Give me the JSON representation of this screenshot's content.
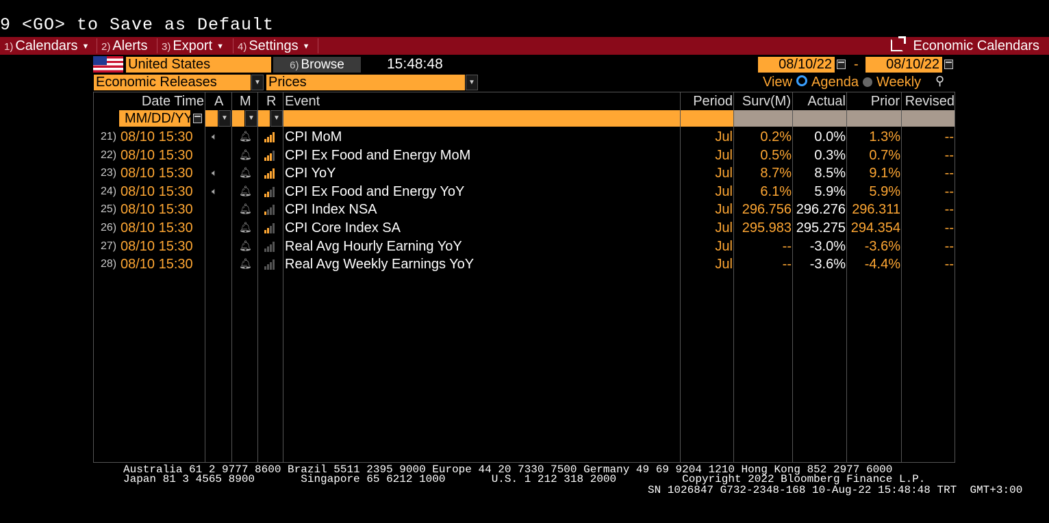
{
  "command_line": "9 <GO> to Save as Default",
  "menu": [
    {
      "num": "1)",
      "label": "Calendars",
      "dropdown": true
    },
    {
      "num": "2)",
      "label": "Alerts",
      "dropdown": false
    },
    {
      "num": "3)",
      "label": "Export",
      "dropdown": true
    },
    {
      "num": "4)",
      "label": "Settings",
      "dropdown": true
    }
  ],
  "window_title": "Economic Calendars",
  "country": "United States",
  "browse_num": "6)",
  "browse_label": "Browse",
  "clock": "15:48:48",
  "date_from": "08/10/22",
  "date_sep": "-",
  "date_to": "08/10/22",
  "filter_type": "Economic Releases",
  "filter_sub": "Prices",
  "view_label": "View",
  "view_options": [
    {
      "label": "Agenda",
      "selected": true
    },
    {
      "label": "Weekly",
      "selected": false
    }
  ],
  "columns": {
    "datetime": "Date Time",
    "a": "A",
    "m": "M",
    "r": "R",
    "event": "Event",
    "period": "Period",
    "surv": "Surv(M)",
    "actual": "Actual",
    "prior": "Prior",
    "revised": "Revised"
  },
  "date_filter_placeholder": "MM/DD/YY",
  "rows": [
    {
      "num": "21)",
      "datetime": "08/10 15:30",
      "audio": true,
      "relevance": 4,
      "event": "CPI MoM",
      "period": "Jul",
      "surv": "0.2%",
      "actual": "0.0%",
      "prior": "1.3%",
      "revised": "--"
    },
    {
      "num": "22)",
      "datetime": "08/10 15:30",
      "audio": false,
      "relevance": 3,
      "event": "CPI Ex Food and Energy MoM",
      "period": "Jul",
      "surv": "0.5%",
      "actual": "0.3%",
      "prior": "0.7%",
      "revised": "--"
    },
    {
      "num": "23)",
      "datetime": "08/10 15:30",
      "audio": true,
      "relevance": 4,
      "event": "CPI YoY",
      "period": "Jul",
      "surv": "8.7%",
      "actual": "8.5%",
      "prior": "9.1%",
      "revised": "--"
    },
    {
      "num": "24)",
      "datetime": "08/10 15:30",
      "audio": true,
      "relevance": 2,
      "event": "CPI Ex Food and Energy YoY",
      "period": "Jul",
      "surv": "6.1%",
      "actual": "5.9%",
      "prior": "5.9%",
      "revised": "--"
    },
    {
      "num": "25)",
      "datetime": "08/10 15:30",
      "audio": false,
      "relevance": 1,
      "event": "CPI Index NSA",
      "period": "Jul",
      "surv": "296.756",
      "actual": "296.276",
      "prior": "296.311",
      "revised": "--"
    },
    {
      "num": "26)",
      "datetime": "08/10 15:30",
      "audio": false,
      "relevance": 2,
      "event": "CPI Core Index SA",
      "period": "Jul",
      "surv": "295.983",
      "actual": "295.275",
      "prior": "294.354",
      "revised": "--"
    },
    {
      "num": "27)",
      "datetime": "08/10 15:30",
      "audio": false,
      "relevance": 0,
      "event": "Real Avg Hourly Earning YoY",
      "period": "Jul",
      "surv": "--",
      "actual": "-3.0%",
      "prior": "-3.6%",
      "revised": "--"
    },
    {
      "num": "28)",
      "datetime": "08/10 15:30",
      "audio": false,
      "relevance": 0,
      "event": "Real Avg Weekly Earnings YoY",
      "period": "Jul",
      "surv": "--",
      "actual": "-3.6%",
      "prior": "-4.4%",
      "revised": "--"
    }
  ],
  "footer": {
    "line1": "Australia 61 2 9777 8600 Brazil 5511 2395 9000 Europe 44 20 7330 7500 Germany 49 69 9204 1210 Hong Kong 852 2977 6000",
    "line2": "Japan 81 3 4565 8900       Singapore 65 6212 1000       U.S. 1 212 318 2000          Copyright 2022 Bloomberg Finance L.P.",
    "line3": "SN 1026847 G732-2348-168 10-Aug-22 15:48:48 TRT  GMT+3:00"
  },
  "colors": {
    "accent": "#ffa733",
    "menu_bar": "#8a0a1a",
    "background": "#000000",
    "radio_selected": "#3aa0ff"
  }
}
